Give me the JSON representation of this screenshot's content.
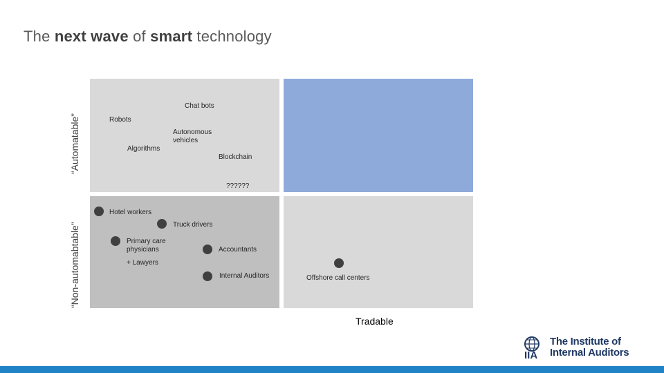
{
  "title": {
    "part1": "The ",
    "part2": "next wave",
    "part3": " of ",
    "part4": "smart",
    "part5": " technology"
  },
  "axes": {
    "y_top": "“Automatable”",
    "y_bottom": "“Non-automabtable”",
    "x_right": "Tradable"
  },
  "top_left_items": {
    "chat_bots": "Chat bots",
    "robots": "Robots",
    "autonomous_vehicles_line1": "Autonomous",
    "autonomous_vehicles_line2": "vehicles",
    "algorithms": "Algorithms",
    "blockchain": "Blockchain",
    "unknown": "??????"
  },
  "bottom_items": {
    "hotel_workers": "Hotel workers",
    "truck_drivers": "Truck drivers",
    "primary_care_line1": "Primary care",
    "primary_care_line2": "physicians",
    "lawyers": "+ Lawyers",
    "accountants": "Accountants",
    "internal_auditors": "Internal Auditors",
    "offshore_call_centers": "Offshore call centers"
  },
  "logo": {
    "line1": "The Institute of",
    "line2": "Internal Auditors",
    "mark": "IIA"
  },
  "colors": {
    "automatable_tradable": "#8eaadb",
    "quadrant_light": "#d9d9d9",
    "quadrant_dark": "#bfbfbf",
    "dot": "#404040",
    "bar": "#1f83c6"
  }
}
